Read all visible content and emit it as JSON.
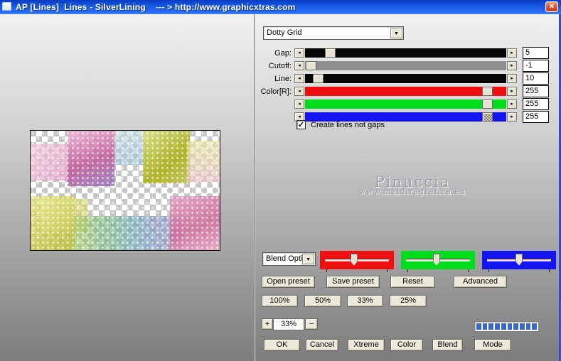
{
  "window": {
    "title": "AP [Lines]  Lines - SilverLining    --- > http://www.graphicxtras.com"
  },
  "icons": {
    "close": "✕",
    "dropdown_arrow": "▼",
    "check": "✓",
    "slider_left": "◂",
    "slider_right": "▸"
  },
  "filter": {
    "value": "Dotty Grid"
  },
  "sliders": [
    {
      "label": "Gap:",
      "value": "5",
      "track_color": "#060606",
      "thumb_pct": 10.5,
      "hatched": false
    },
    {
      "label": "Cutoff:",
      "value": "-1",
      "track_color": "#8e8e8e",
      "thumb_pct": 0.5,
      "hatched": false
    },
    {
      "label": "Line:",
      "value": "10",
      "track_color": "#060606",
      "thumb_pct": 4,
      "hatched": false
    },
    {
      "label": "Color[R]:",
      "value": "255",
      "track_color": "#ee1010",
      "thumb_pct": 93,
      "hatched": false
    },
    {
      "label": "",
      "value": "255",
      "track_color": "#00dd1c",
      "thumb_pct": 93,
      "hatched": false
    },
    {
      "label": "",
      "value": "255",
      "track_color": "#1414ee",
      "thumb_pct": 93,
      "hatched": true
    }
  ],
  "checkbox": {
    "label": "Create lines not gaps",
    "checked": true
  },
  "watermark": {
    "line1": "Pinuccia",
    "line2": "www.maidiregrafica.eu"
  },
  "blend": {
    "dropdown_value": "Blend Opti",
    "channels": [
      {
        "name": "red",
        "color": "#ee1010",
        "thumb_pct": 46
      },
      {
        "name": "green",
        "color": "#00dd1c",
        "thumb_pct": 48
      },
      {
        "name": "blue",
        "color": "#1414ee",
        "thumb_pct": 50
      }
    ]
  },
  "preset_buttons": {
    "open": "Open preset",
    "save": "Save preset",
    "reset": "Reset",
    "advanced": "Advanced"
  },
  "zoom_buttons": {
    "z100": "100%",
    "z50": "50%",
    "z33": "33%",
    "z25": "25%"
  },
  "zoom_stepper": {
    "plus": "+",
    "value": "33%",
    "minus": "−"
  },
  "progress": {
    "segments": 10,
    "color": "#3a66c8"
  },
  "action_buttons": {
    "ok": "OK",
    "cancel": "Cancel",
    "xtreme": "Xtreme",
    "color": "Color",
    "blend": "Blend",
    "mode": "Mode"
  },
  "preview": {
    "alt": "Transparency checkerboard preview with pastel pink, magenta, blue, yellow-green and yellow blocks covered by a white dotty grid"
  }
}
